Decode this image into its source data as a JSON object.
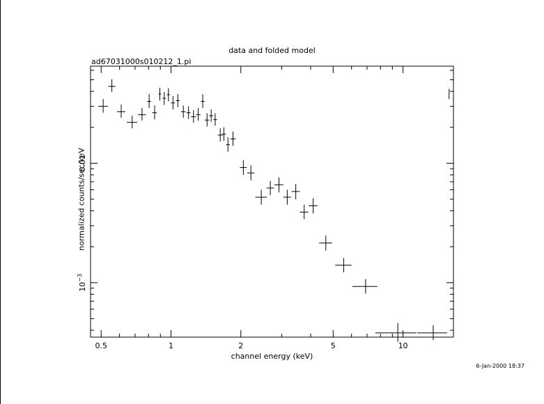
{
  "header": {
    "title": "data and folded model",
    "file_label": "ad67031000s010212_1.pi"
  },
  "footer": {
    "timestamp": "6-Jan-2000 18:37"
  },
  "chart_data": {
    "type": "scatter",
    "title": "data and folded model",
    "xlabel": "channel energy (keV)",
    "ylabel": "normalized counts/sec/keV",
    "xscale": "log",
    "yscale": "log",
    "xlim": [
      0.45,
      16.5
    ],
    "ylim": [
      0.00035,
      0.065
    ],
    "x_ticks": [
      {
        "value": 0.5,
        "label": "0.5"
      },
      {
        "value": 1,
        "label": "1"
      },
      {
        "value": 2,
        "label": "2"
      },
      {
        "value": 5,
        "label": "5"
      },
      {
        "value": 10,
        "label": "10"
      }
    ],
    "y_ticks": [
      {
        "value": 0.01,
        "label": "0.01"
      },
      {
        "value": 0.001,
        "label": "10",
        "exponent": "−3"
      }
    ],
    "series": [
      {
        "points": [
          {
            "x": 0.51,
            "y": 0.03,
            "xerr": 0.025,
            "ylo": 0.0265,
            "yhi": 0.0345
          },
          {
            "x": 0.556,
            "y": 0.044,
            "xerr": 0.02,
            "ylo": 0.0395,
            "yhi": 0.0505
          },
          {
            "x": 0.61,
            "y": 0.027,
            "xerr": 0.025,
            "ylo": 0.024,
            "yhi": 0.031
          },
          {
            "x": 0.68,
            "y": 0.022,
            "xerr": 0.035,
            "ylo": 0.0196,
            "yhi": 0.025
          },
          {
            "x": 0.75,
            "y": 0.0255,
            "xerr": 0.03,
            "ylo": 0.0228,
            "yhi": 0.029
          },
          {
            "x": 0.805,
            "y": 0.033,
            "xerr": 0.015,
            "ylo": 0.029,
            "yhi": 0.038
          },
          {
            "x": 0.85,
            "y": 0.0265,
            "xerr": 0.02,
            "ylo": 0.0233,
            "yhi": 0.0305
          },
          {
            "x": 0.895,
            "y": 0.038,
            "xerr": 0.012,
            "ylo": 0.0335,
            "yhi": 0.043
          },
          {
            "x": 0.935,
            "y": 0.035,
            "xerr": 0.015,
            "ylo": 0.0308,
            "yhi": 0.0395
          },
          {
            "x": 0.975,
            "y": 0.0375,
            "xerr": 0.015,
            "ylo": 0.033,
            "yhi": 0.0425
          },
          {
            "x": 1.02,
            "y": 0.032,
            "xerr": 0.02,
            "ylo": 0.0282,
            "yhi": 0.0365
          },
          {
            "x": 1.07,
            "y": 0.0335,
            "xerr": 0.02,
            "ylo": 0.0295,
            "yhi": 0.038
          },
          {
            "x": 1.13,
            "y": 0.027,
            "xerr": 0.025,
            "ylo": 0.024,
            "yhi": 0.0305
          },
          {
            "x": 1.19,
            "y": 0.0265,
            "xerr": 0.025,
            "ylo": 0.0235,
            "yhi": 0.03
          },
          {
            "x": 1.25,
            "y": 0.0245,
            "xerr": 0.03,
            "ylo": 0.0218,
            "yhi": 0.0278
          },
          {
            "x": 1.31,
            "y": 0.0255,
            "xerr": 0.03,
            "ylo": 0.0227,
            "yhi": 0.029
          },
          {
            "x": 1.37,
            "y": 0.033,
            "xerr": 0.025,
            "ylo": 0.029,
            "yhi": 0.0378
          },
          {
            "x": 1.43,
            "y": 0.023,
            "xerr": 0.03,
            "ylo": 0.0203,
            "yhi": 0.0262
          },
          {
            "x": 1.49,
            "y": 0.025,
            "xerr": 0.03,
            "ylo": 0.0222,
            "yhi": 0.0282
          },
          {
            "x": 1.55,
            "y": 0.0232,
            "xerr": 0.03,
            "ylo": 0.0206,
            "yhi": 0.0262
          },
          {
            "x": 1.63,
            "y": 0.0172,
            "xerr": 0.04,
            "ylo": 0.0152,
            "yhi": 0.0196
          },
          {
            "x": 1.69,
            "y": 0.0175,
            "xerr": 0.035,
            "ylo": 0.0154,
            "yhi": 0.02
          },
          {
            "x": 1.76,
            "y": 0.0143,
            "xerr": 0.035,
            "ylo": 0.0125,
            "yhi": 0.0165
          },
          {
            "x": 1.85,
            "y": 0.016,
            "xerr": 0.05,
            "ylo": 0.014,
            "yhi": 0.0184
          },
          {
            "x": 2.05,
            "y": 0.0092,
            "xerr": 0.07,
            "ylo": 0.008,
            "yhi": 0.0106
          },
          {
            "x": 2.21,
            "y": 0.0083,
            "xerr": 0.08,
            "ylo": 0.0072,
            "yhi": 0.0096
          },
          {
            "x": 2.45,
            "y": 0.0052,
            "xerr": 0.14,
            "ylo": 0.0045,
            "yhi": 0.006
          },
          {
            "x": 2.68,
            "y": 0.0062,
            "xerr": 0.1,
            "ylo": 0.0054,
            "yhi": 0.0071
          },
          {
            "x": 2.92,
            "y": 0.0066,
            "xerr": 0.13,
            "ylo": 0.0057,
            "yhi": 0.0076
          },
          {
            "x": 3.17,
            "y": 0.0052,
            "xerr": 0.12,
            "ylo": 0.0045,
            "yhi": 0.006
          },
          {
            "x": 3.45,
            "y": 0.0058,
            "xerr": 0.14,
            "ylo": 0.005,
            "yhi": 0.0067
          },
          {
            "x": 3.75,
            "y": 0.0039,
            "xerr": 0.16,
            "ylo": 0.0034,
            "yhi": 0.0045
          },
          {
            "x": 4.1,
            "y": 0.0044,
            "xerr": 0.18,
            "ylo": 0.0038,
            "yhi": 0.0051
          },
          {
            "x": 4.65,
            "y": 0.00215,
            "xerr": 0.3,
            "ylo": 0.00186,
            "yhi": 0.00248
          },
          {
            "x": 5.55,
            "y": 0.0014,
            "xerr": 0.45,
            "ylo": 0.00122,
            "yhi": 0.00161
          },
          {
            "x": 6.9,
            "y": 0.00093,
            "xerr": 0.85,
            "ylo": 0.00081,
            "yhi": 0.00107
          },
          {
            "x": 9.5,
            "y": 0.00038,
            "xerr": 1.9,
            "ylo": 0.00032,
            "yhi": 0.00046
          },
          {
            "x": 13.5,
            "y": 0.00038,
            "xerr": 2.0,
            "ylo": 0.00033,
            "yhi": 0.00044
          },
          {
            "x": 15.8,
            "y": 0.038,
            "xerr": 0.02,
            "ylo": 0.0345,
            "yhi": 0.042
          }
        ]
      }
    ]
  }
}
